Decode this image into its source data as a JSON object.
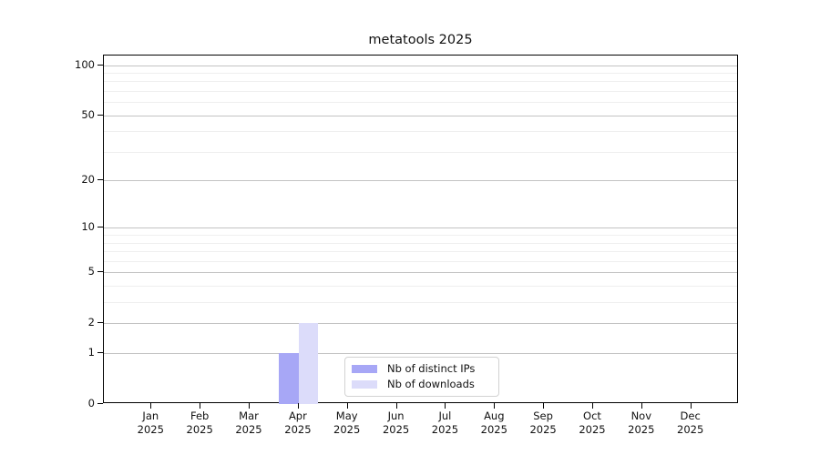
{
  "chart_data": {
    "type": "bar",
    "title": "metatools 2025",
    "categories": [
      "Jan",
      "Feb",
      "Mar",
      "Apr",
      "May",
      "Jun",
      "Jul",
      "Aug",
      "Sep",
      "Oct",
      "Nov",
      "Dec"
    ],
    "category_year": "2025",
    "series": [
      {
        "name": "Nb of distinct IPs",
        "color": "#a7a7f6",
        "values": [
          0,
          0,
          0,
          1,
          0,
          0,
          0,
          0,
          0,
          0,
          0,
          0
        ]
      },
      {
        "name": "Nb of downloads",
        "color": "#dcdcfa",
        "values": [
          0,
          0,
          0,
          2,
          0,
          0,
          0,
          0,
          0,
          0,
          0,
          0
        ]
      }
    ],
    "y_scale": "log1p",
    "y_ticks": [
      0,
      1,
      2,
      5,
      10,
      20,
      50,
      100
    ],
    "y_minor_ticks": [
      3,
      4,
      6,
      7,
      8,
      9,
      30,
      40,
      60,
      70,
      80,
      90
    ],
    "ylim": [
      0,
      114
    ],
    "xlabel": "",
    "ylabel": "",
    "grid": true,
    "legend_position": "lower center",
    "grid_major_color": "#c3c3c3",
    "grid_minor_color": "#efefef"
  }
}
